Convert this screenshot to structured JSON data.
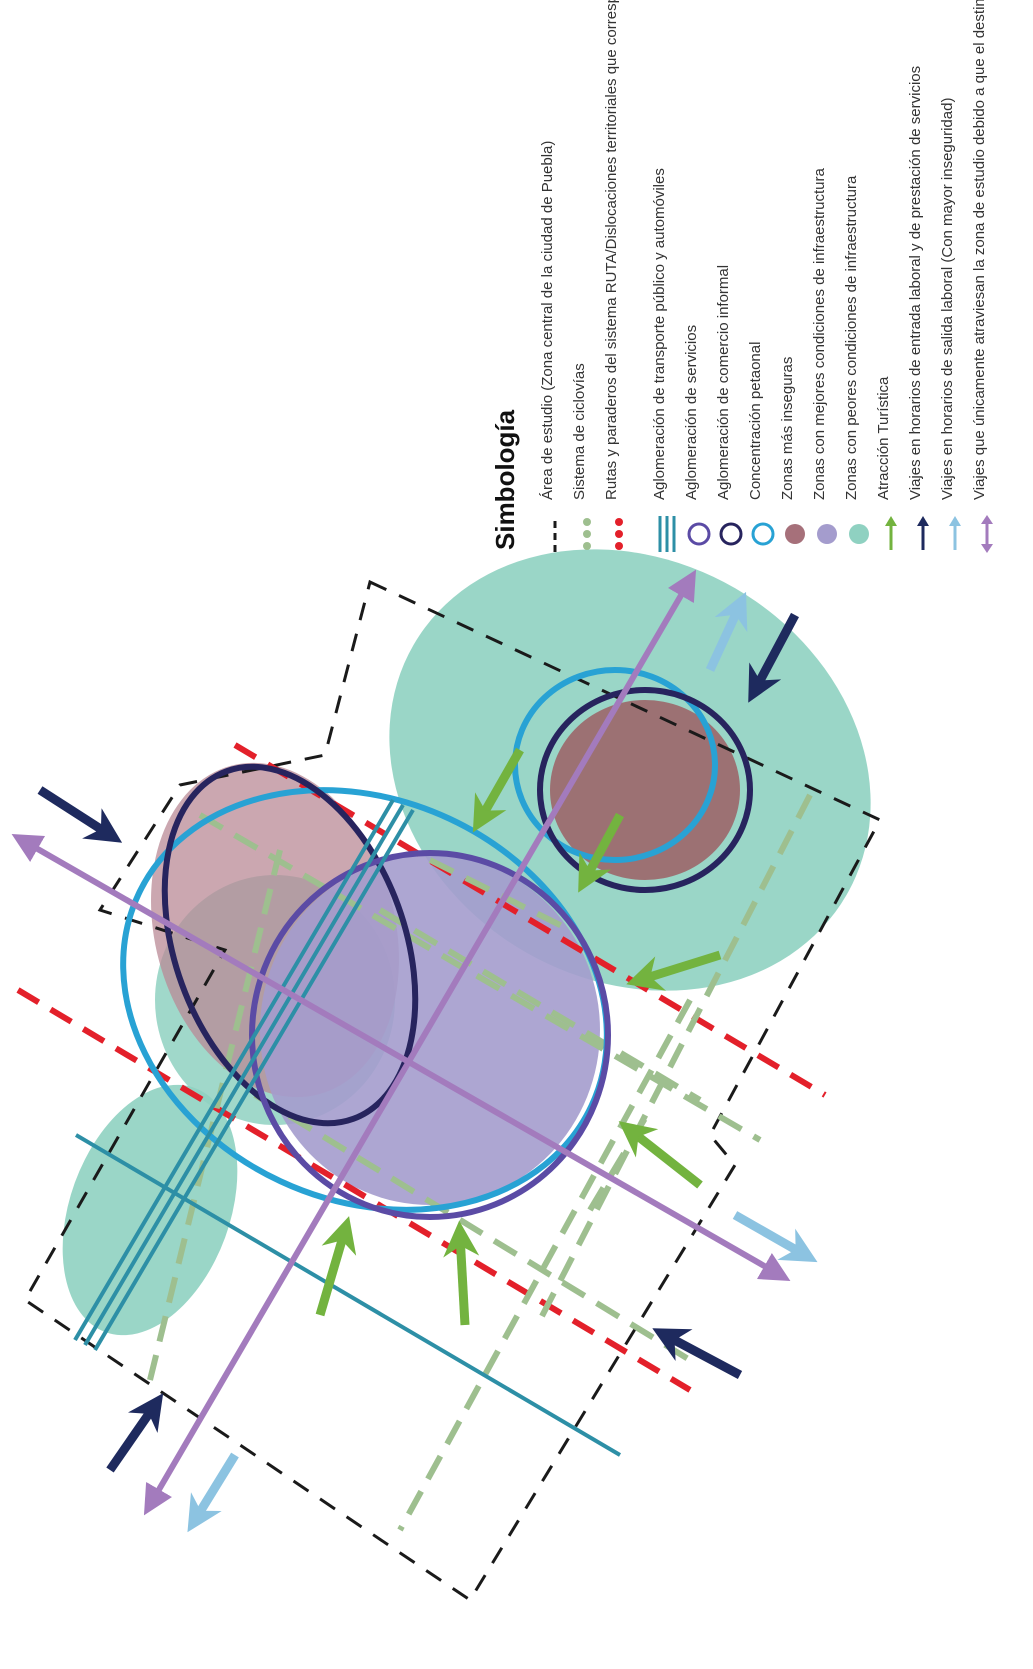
{
  "legend": {
    "title": "Simbología",
    "items": [
      {
        "label": "Área de estudio (Zona central de la ciudad de Puebla)",
        "symbol": "dashed-black-line-icon",
        "color": "#1a1a1a"
      },
      {
        "label": "Sistema de ciclovías",
        "symbol": "green-dotted-line-icon",
        "color": "#9ebf8f"
      },
      {
        "label": "Rutas y paraderos del sistema RUTA/Dislocaciones territoriales que corresponden a vialidades peligrosas",
        "symbol": "red-dotted-line-icon",
        "color": "#e3202a"
      },
      {
        "label": "Aglomeración de transporte público y automóviles",
        "symbol": "triple-line-icon",
        "color": "#2d8fa6"
      },
      {
        "label": "Aglomeración de servicios",
        "symbol": "purple-ring-icon",
        "color": "#5b4ba5"
      },
      {
        "label": "Aglomeración de comercio informal",
        "symbol": "navy-ring-icon",
        "color": "#27245e"
      },
      {
        "label": "Concentración petaonal",
        "symbol": "blue-ring-icon",
        "color": "#28a2d4"
      },
      {
        "label": "Zonas más inseguras",
        "symbol": "mauve-disc-icon",
        "color": "#a6707a"
      },
      {
        "label": "Zonas con mejores condiciones de infraestructura",
        "symbol": "lavender-disc-icon",
        "color": "#a49ccd"
      },
      {
        "label": "Zonas con peores condiciones de infraestructura",
        "symbol": "teal-disc-icon",
        "color": "#8fd1c1"
      },
      {
        "label": "Atracción Turística",
        "symbol": "green-arrow-icon",
        "color": "#73b33f"
      },
      {
        "label": "Viajes en horarios de entrada laboral y de prestación de servicios",
        "symbol": "navy-arrow-icon",
        "color": "#1e2a5e"
      },
      {
        "label": "Viajes en horarios de salida laboral (Con mayor inseguridad)",
        "symbol": "light-blue-arrow-icon",
        "color": "#8cc3e1"
      },
      {
        "label": "Viajes que únicamente atraviesan la zona de estudio debido a que el destino final no es ésta misma",
        "symbol": "purple-double-arrow-icon",
        "color": "#a37bbd"
      }
    ]
  }
}
